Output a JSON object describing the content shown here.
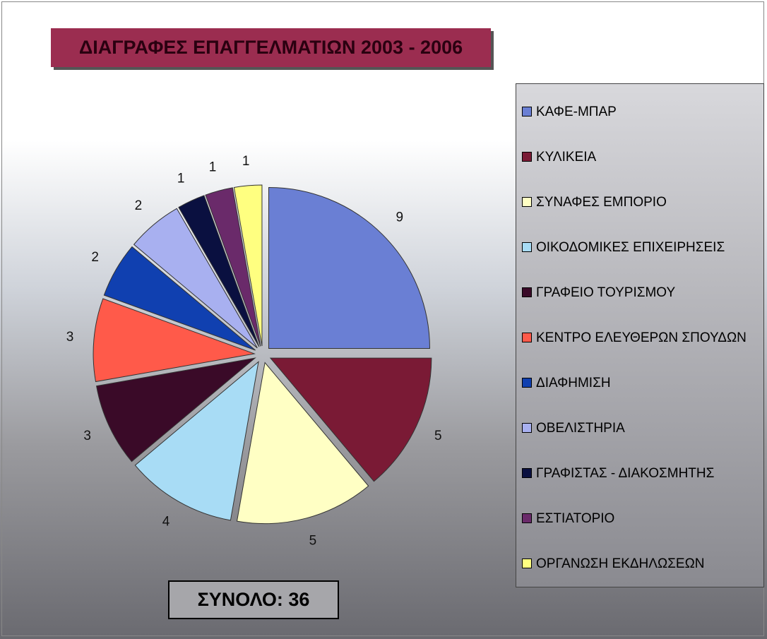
{
  "chart_data": {
    "type": "pie",
    "title": "ΔΙΑΓΡΑΦΕΣ ΕΠΑΓΓΕΛΜΑΤΙΩΝ 2003 - 2006",
    "categories": [
      "ΚΑΦΕ-ΜΠΑΡ",
      "ΚΥΛΙΚΕΙΑ",
      "ΣΥΝΑΦΕΣ ΕΜΠΟΡΙΟ",
      "ΟΙΚΟΔΟΜΙΚΕΣ ΕΠΙΧΕΙΡΗΣΕΙΣ",
      "ΓΡΑΦΕΙΟ ΤΟΥΡΙΣΜΟΥ",
      "ΚΕΝΤΡΟ ΕΛΕΥΘΕΡΩΝ ΣΠΟΥΔΩΝ",
      "ΔΙΑΦΗΜΙΣΗ",
      "ΟΒΕΛΙΣΤΗΡΙΑ",
      "ΓΡΑΦΙΣΤΑΣ - ΔΙΑΚΟΣΜΗΤΗΣ",
      "ΕΣΤΙΑΤΟΡΙΟ",
      "ΟΡΓΑΝΩΣΗ ΕΚΔΗΛΩΣΕΩΝ"
    ],
    "values": [
      9,
      5,
      5,
      4,
      3,
      3,
      2,
      2,
      1,
      1,
      1
    ],
    "colors": [
      "#6a7fd4",
      "#7a1a35",
      "#ffffc4",
      "#a8dcf5",
      "#3a0a28",
      "#ff5a4a",
      "#1040b0",
      "#a8b0f0",
      "#0a1040",
      "#6a2a6a",
      "#ffff80"
    ],
    "total_label": "ΣΥΝΟΛΟ: 36"
  }
}
